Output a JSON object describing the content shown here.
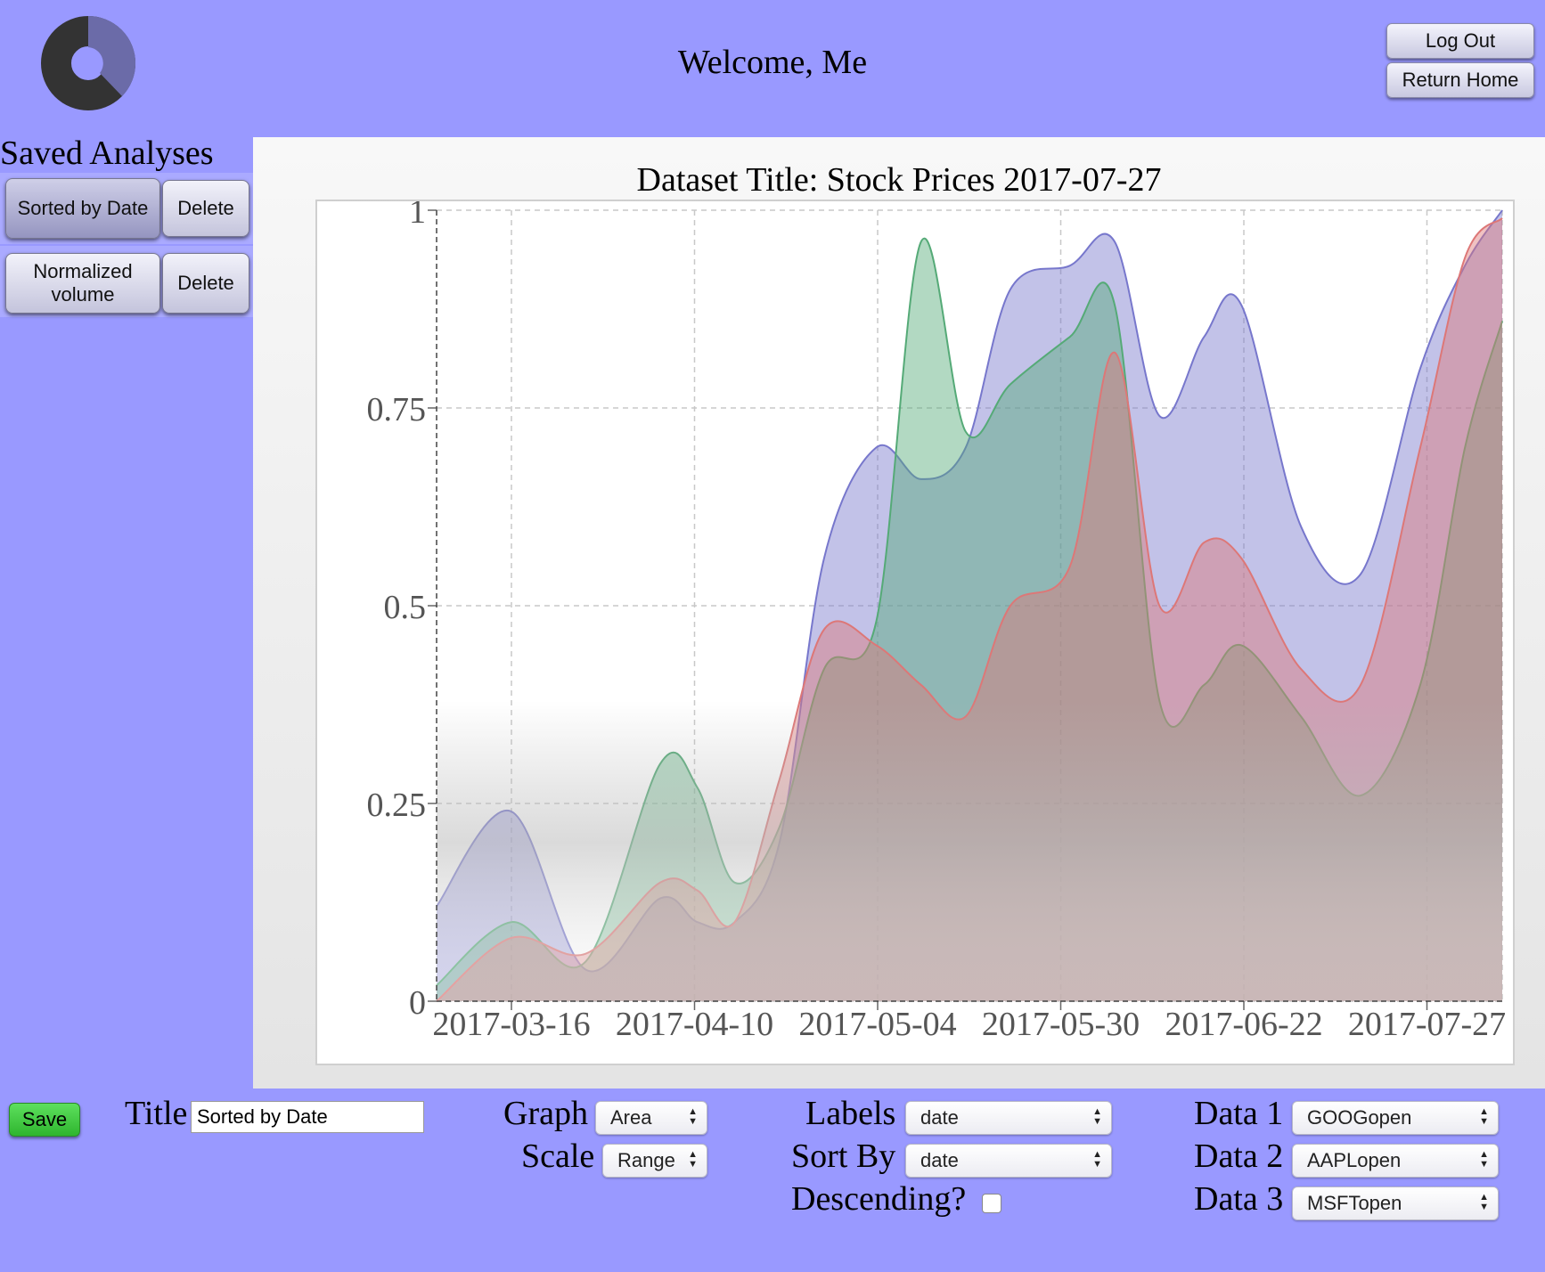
{
  "header": {
    "welcome": "Welcome, Me",
    "logout_label": "Log Out",
    "return_home_label": "Return Home",
    "logo_icon": "donut-logo-icon"
  },
  "sidebar": {
    "title": "Saved Analyses",
    "items": [
      {
        "label": "Sorted by Date",
        "delete_label": "Delete",
        "active": true
      },
      {
        "label": "Normalized volume",
        "delete_label": "Delete",
        "active": false
      }
    ]
  },
  "chart": {
    "title": "Dataset Title: Stock Prices 2017-07-27"
  },
  "chart_data": {
    "type": "area",
    "title": "Dataset Title: Stock Prices 2017-07-27",
    "x_tick_labels": [
      "2017-03-16",
      "2017-04-10",
      "2017-05-04",
      "2017-05-30",
      "2017-06-22",
      "2017-07-27"
    ],
    "y_tick_labels": [
      "0",
      "0.25",
      "0.5",
      "0.75",
      "1"
    ],
    "ylim": [
      0,
      1
    ],
    "grid": true,
    "x": [
      "2017-03-06",
      "2017-03-16",
      "2017-03-26",
      "2017-04-05",
      "2017-04-10",
      "2017-04-15",
      "2017-04-21",
      "2017-04-27",
      "2017-05-04",
      "2017-05-10",
      "2017-05-16",
      "2017-05-22",
      "2017-05-30",
      "2017-06-05",
      "2017-06-11",
      "2017-06-17",
      "2017-06-22",
      "2017-06-30",
      "2017-07-08",
      "2017-07-16",
      "2017-07-22",
      "2017-07-27"
    ],
    "series": [
      {
        "color": "#7777cc",
        "values": [
          0.12,
          0.24,
          0.04,
          0.13,
          0.1,
          0.1,
          0.2,
          0.56,
          0.7,
          0.66,
          0.7,
          0.9,
          0.93,
          0.96,
          0.74,
          0.84,
          0.88,
          0.6,
          0.54,
          0.8,
          0.93,
          1.0
        ]
      },
      {
        "color": "#55aa77",
        "values": [
          0.02,
          0.1,
          0.05,
          0.3,
          0.27,
          0.15,
          0.22,
          0.42,
          0.48,
          0.96,
          0.72,
          0.78,
          0.84,
          0.88,
          0.38,
          0.4,
          0.45,
          0.36,
          0.26,
          0.4,
          0.7,
          0.86
        ]
      },
      {
        "color": "#dd7777",
        "values": [
          0.0,
          0.08,
          0.06,
          0.15,
          0.14,
          0.1,
          0.28,
          0.47,
          0.45,
          0.4,
          0.36,
          0.5,
          0.55,
          0.82,
          0.5,
          0.58,
          0.56,
          0.42,
          0.4,
          0.7,
          0.94,
          0.99
        ]
      }
    ]
  },
  "controls": {
    "save_label": "Save",
    "title_label": "Title",
    "title_value": "Sorted by Date",
    "graph_label": "Graph",
    "graph_value": "Area",
    "scale_label": "Scale",
    "scale_value": "Range",
    "labels_label": "Labels",
    "labels_value": "date",
    "sortby_label": "Sort By",
    "sortby_value": "date",
    "descending_label": "Descending?",
    "descending_checked": false,
    "data1_label": "Data 1",
    "data1_value": "GOOGopen",
    "data2_label": "Data 2",
    "data2_value": "AAPLopen",
    "data3_label": "Data 3",
    "data3_value": "MSFTopen"
  }
}
